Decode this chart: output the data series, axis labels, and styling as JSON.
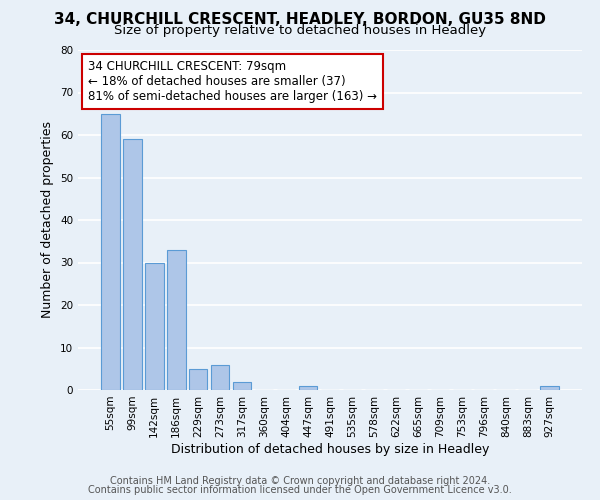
{
  "title": "34, CHURCHILL CRESCENT, HEADLEY, BORDON, GU35 8ND",
  "subtitle": "Size of property relative to detached houses in Headley",
  "xlabel": "Distribution of detached houses by size in Headley",
  "ylabel": "Number of detached properties",
  "bar_labels": [
    "55sqm",
    "99sqm",
    "142sqm",
    "186sqm",
    "229sqm",
    "273sqm",
    "317sqm",
    "360sqm",
    "404sqm",
    "447sqm",
    "491sqm",
    "535sqm",
    "578sqm",
    "622sqm",
    "665sqm",
    "709sqm",
    "753sqm",
    "796sqm",
    "840sqm",
    "883sqm",
    "927sqm"
  ],
  "bar_values": [
    65,
    59,
    30,
    33,
    5,
    6,
    2,
    0,
    0,
    1,
    0,
    0,
    0,
    0,
    0,
    0,
    0,
    0,
    0,
    0,
    1
  ],
  "bar_color": "#aec6e8",
  "bar_edge_color": "#5b9bd5",
  "ylim": [
    0,
    80
  ],
  "yticks": [
    0,
    10,
    20,
    30,
    40,
    50,
    60,
    70,
    80
  ],
  "annotation_text": "34 CHURCHILL CRESCENT: 79sqm\n← 18% of detached houses are smaller (37)\n81% of semi-detached houses are larger (163) →",
  "annotation_box_color": "#ffffff",
  "annotation_box_edge_color": "#cc0000",
  "footer_line1": "Contains HM Land Registry data © Crown copyright and database right 2024.",
  "footer_line2": "Contains public sector information licensed under the Open Government Licence v3.0.",
  "background_color": "#e8f0f8",
  "plot_background_color": "#e8f0f8",
  "grid_color": "#ffffff",
  "title_fontsize": 11,
  "subtitle_fontsize": 9.5,
  "axis_label_fontsize": 9,
  "tick_fontsize": 7.5,
  "annotation_fontsize": 8.5,
  "footer_fontsize": 7
}
